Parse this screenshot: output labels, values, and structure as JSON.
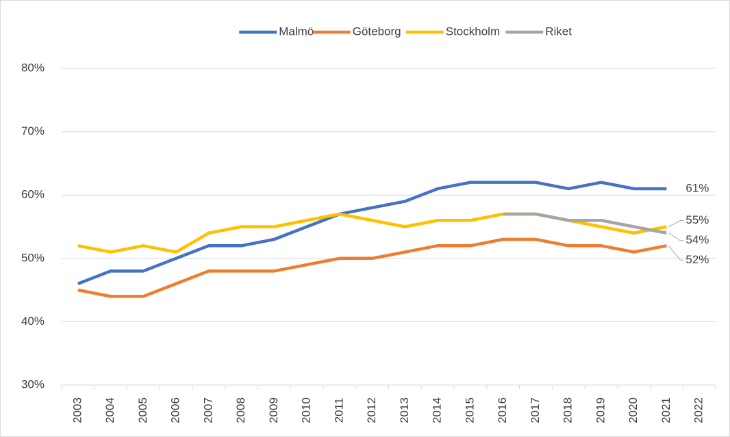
{
  "chart_data": {
    "type": "line",
    "categories": [
      "2003",
      "2004",
      "2005",
      "2006",
      "2007",
      "2008",
      "2009",
      "2010",
      "2011",
      "2012",
      "2013",
      "2014",
      "2015",
      "2016",
      "2017",
      "2018",
      "2019",
      "2020",
      "2021",
      "2022"
    ],
    "series": [
      {
        "name": "Malmö",
        "color": "#4472c4",
        "values": [
          46,
          48,
          48,
          50,
          52,
          52,
          53,
          55,
          57,
          58,
          59,
          61,
          62,
          62,
          62,
          61,
          62,
          61,
          61,
          null
        ],
        "value_labels": [
          null,
          null,
          null,
          null,
          null,
          null,
          null,
          null,
          null,
          null,
          null,
          null,
          null,
          null,
          null,
          null,
          null,
          null,
          "61%",
          null
        ]
      },
      {
        "name": "Göteborg",
        "color": "#ed7d31",
        "values": [
          45,
          44,
          44,
          46,
          48,
          48,
          48,
          49,
          50,
          50,
          51,
          52,
          52,
          53,
          53,
          52,
          52,
          51,
          52,
          null
        ],
        "value_labels": [
          null,
          null,
          null,
          null,
          null,
          null,
          null,
          null,
          null,
          null,
          null,
          null,
          null,
          null,
          null,
          null,
          null,
          null,
          "52%",
          null
        ]
      },
      {
        "name": "Stockholm",
        "color": "#ffc000",
        "values": [
          52,
          51,
          52,
          51,
          54,
          55,
          55,
          56,
          57,
          56,
          55,
          56,
          56,
          57,
          57,
          56,
          55,
          54,
          55,
          null
        ],
        "value_labels": [
          null,
          null,
          null,
          null,
          null,
          null,
          null,
          null,
          null,
          null,
          null,
          null,
          null,
          null,
          null,
          null,
          null,
          null,
          "55%",
          null
        ]
      },
      {
        "name": "Riket",
        "color": "#a5a5a5",
        "values": [
          null,
          null,
          null,
          null,
          null,
          null,
          null,
          null,
          null,
          null,
          null,
          null,
          null,
          57,
          57,
          56,
          56,
          55,
          54,
          null
        ],
        "value_labels": [
          null,
          null,
          null,
          null,
          null,
          null,
          null,
          null,
          null,
          null,
          null,
          null,
          null,
          null,
          null,
          null,
          null,
          null,
          "54%",
          null
        ]
      }
    ],
    "ylim": [
      30,
      80
    ],
    "yticks": [
      {
        "value": 30,
        "label": "30%"
      },
      {
        "value": 40,
        "label": "40%"
      },
      {
        "value": 50,
        "label": "50%"
      },
      {
        "value": 60,
        "label": "60%"
      },
      {
        "value": 70,
        "label": "70%"
      },
      {
        "value": 80,
        "label": "80%"
      }
    ],
    "grid": true,
    "legend": "top"
  }
}
